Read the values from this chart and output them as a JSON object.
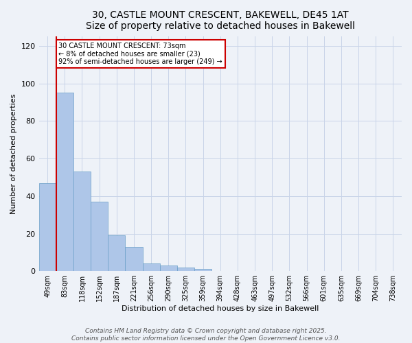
{
  "title_line1": "30, CASTLE MOUNT CRESCENT, BAKEWELL, DE45 1AT",
  "title_line2": "Size of property relative to detached houses in Bakewell",
  "xlabel": "Distribution of detached houses by size in Bakewell",
  "ylabel": "Number of detached properties",
  "categories": [
    "49sqm",
    "83sqm",
    "118sqm",
    "152sqm",
    "187sqm",
    "221sqm",
    "256sqm",
    "290sqm",
    "325sqm",
    "359sqm",
    "394sqm",
    "428sqm",
    "463sqm",
    "497sqm",
    "532sqm",
    "566sqm",
    "601sqm",
    "635sqm",
    "669sqm",
    "704sqm",
    "738sqm"
  ],
  "values": [
    47,
    95,
    53,
    37,
    19,
    13,
    4,
    3,
    2,
    1,
    0,
    0,
    0,
    0,
    0,
    0,
    0,
    0,
    0,
    0,
    0
  ],
  "bar_color": "#aec6e8",
  "bar_edge_color": "#6a9fc8",
  "vline_color": "#cc0000",
  "annotation_text": "30 CASTLE MOUNT CRESCENT: 73sqm\n← 8% of detached houses are smaller (23)\n92% of semi-detached houses are larger (249) →",
  "annotation_box_color": "white",
  "annotation_box_edgecolor": "#cc0000",
  "ylim": [
    0,
    125
  ],
  "yticks": [
    0,
    20,
    40,
    60,
    80,
    100,
    120
  ],
  "grid_color": "#c8d4e8",
  "background_color": "#eef2f8",
  "footer_line1": "Contains HM Land Registry data © Crown copyright and database right 2025.",
  "footer_line2": "Contains public sector information licensed under the Open Government Licence v3.0.",
  "footer_fontsize": 6.5,
  "title_fontsize": 10,
  "subtitle_fontsize": 8.5,
  "bar_width": 1.0,
  "vline_pos": 0.5
}
